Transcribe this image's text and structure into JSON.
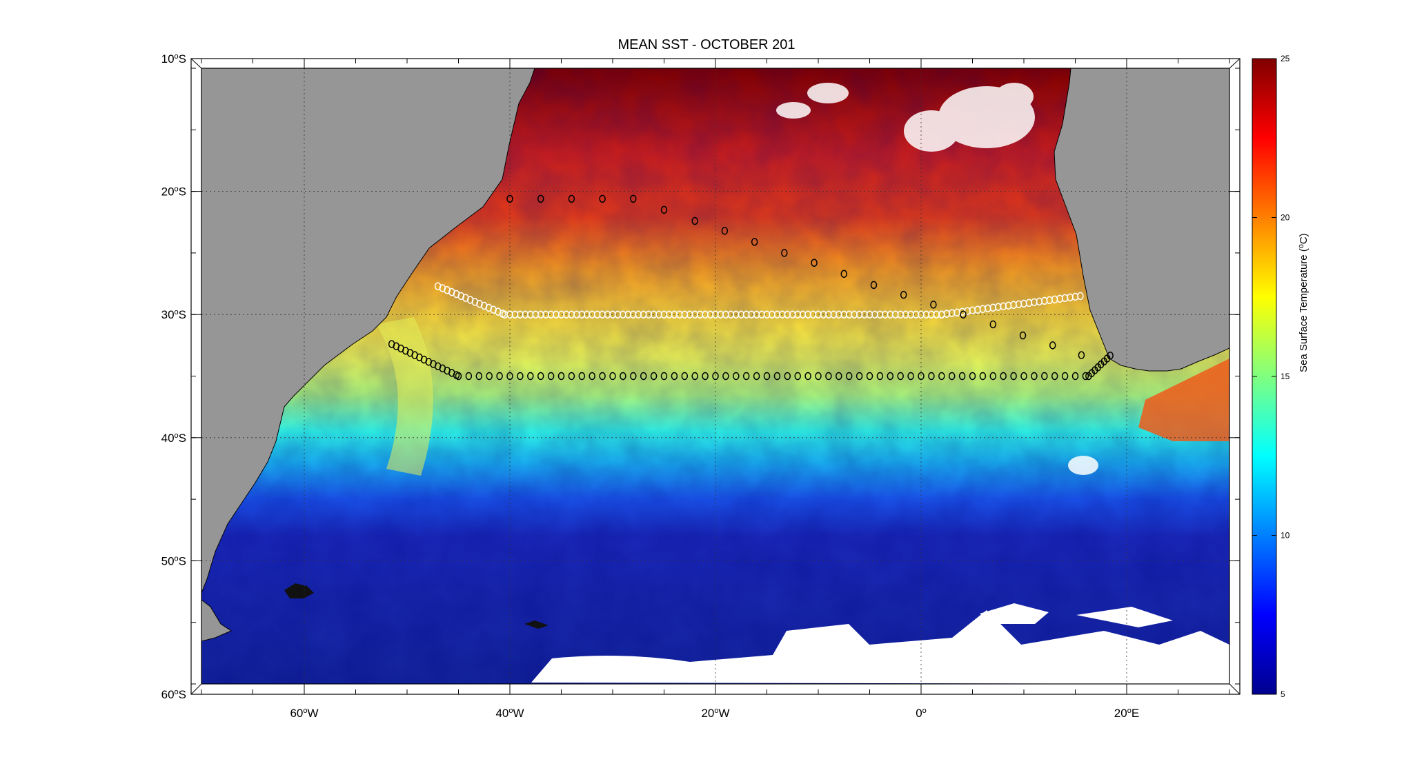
{
  "title": "MEAN SST - OCTOBER 201",
  "map": {
    "lon_range": [
      -70,
      30
    ],
    "lat_range": [
      -60,
      -10
    ],
    "lon_ticks": [
      {
        "value": -60,
        "deg": "60",
        "hemi": "W"
      },
      {
        "value": -40,
        "deg": "40",
        "hemi": "W"
      },
      {
        "value": -20,
        "deg": "20",
        "hemi": "W"
      },
      {
        "value": 0,
        "deg": "0",
        "hemi": ""
      },
      {
        "value": 20,
        "deg": "20",
        "hemi": "E"
      }
    ],
    "lat_ticks": [
      {
        "value": -10,
        "deg": "10",
        "hemi": "S"
      },
      {
        "value": -20,
        "deg": "20",
        "hemi": "S"
      },
      {
        "value": -30,
        "deg": "30",
        "hemi": "S"
      },
      {
        "value": -40,
        "deg": "40",
        "hemi": "S"
      },
      {
        "value": -50,
        "deg": "50",
        "hemi": "S"
      },
      {
        "value": -60,
        "deg": "60",
        "hemi": "S"
      }
    ],
    "grid": "dotted",
    "land_color": "#969696",
    "missing_color": "#ffffff"
  },
  "colorbar": {
    "label": "Sea Surface Temperature (⁰C)",
    "range": [
      5,
      25
    ],
    "ticks": [
      "5",
      "10",
      "15",
      "20",
      "25"
    ],
    "colormap": "jet"
  },
  "stations": {
    "dark_line_lat": -35,
    "white_line_lat": -30,
    "northern_line_points": [
      [
        -40,
        -20.6
      ],
      [
        -37,
        -20.6
      ],
      [
        -34,
        -20.6
      ],
      [
        -31,
        -20.6
      ],
      [
        -28,
        -20.6
      ],
      [
        -25,
        -21.5
      ],
      [
        -22,
        -22.4
      ],
      [
        -19.1,
        -23.2
      ],
      [
        -16.2,
        -24.1
      ],
      [
        -13.3,
        -25.0
      ],
      [
        -10.4,
        -25.8
      ],
      [
        -7.5,
        -26.7
      ],
      [
        -4.6,
        -27.6
      ],
      [
        -1.7,
        -28.4
      ],
      [
        1.2,
        -29.2
      ],
      [
        4.1,
        -30.0
      ],
      [
        7,
        -30.8
      ],
      [
        9.9,
        -31.7
      ],
      [
        12.8,
        -32.5
      ],
      [
        15.6,
        -33.3
      ]
    ]
  }
}
